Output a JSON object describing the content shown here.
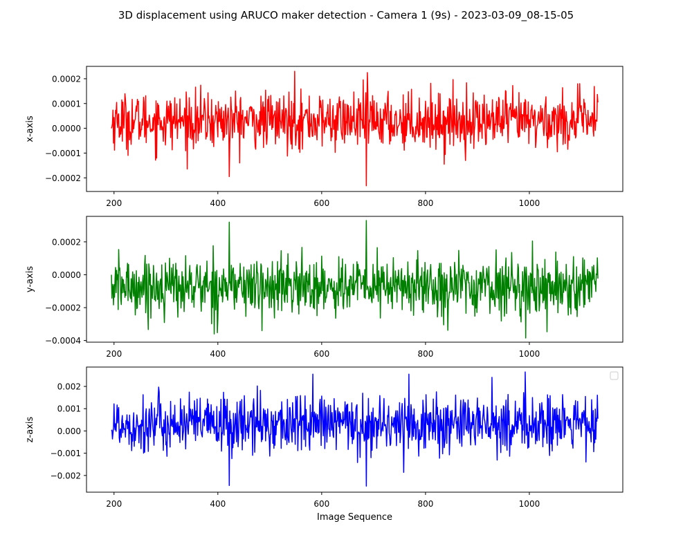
{
  "figure": {
    "title": "3D displacement using ARUCO maker detection - Camera 1 (9s) - 2023-03-09_08-15-05",
    "background": "#ffffff"
  },
  "chart_data": [
    {
      "type": "line",
      "xlabel": "",
      "ylabel": "x-axis",
      "xlim": [
        147,
        1180
      ],
      "ylim": [
        -0.000255,
        0.00025
      ],
      "xticks": [
        200,
        400,
        600,
        800,
        1000
      ],
      "xtick_labels": [
        "200",
        "400",
        "600",
        "800",
        "1000"
      ],
      "yticks": [
        0.0002,
        0.0001,
        0.0,
        -0.0001,
        -0.0002
      ],
      "ytick_labels": [
        "0.0002",
        "0.0001",
        "0.0000",
        "−0.0001",
        "−0.0002"
      ],
      "grid": false,
      "legend": null,
      "series": [
        {
          "color": "#ff0000",
          "x_range": [
            195,
            1132
          ],
          "approx_mean": 3e-05,
          "approx_min": -0.000232,
          "approx_max": 0.00023,
          "highlights": [
            {
              "x": 422,
              "y": -0.000195
            },
            {
              "x": 548,
              "y": 0.00023
            },
            {
              "x": 686,
              "y": -0.000232
            },
            {
              "x": 688,
              "y": 0.000225
            },
            {
              "x": 836,
              "y": -0.000145
            }
          ]
        }
      ]
    },
    {
      "type": "line",
      "xlabel": "",
      "ylabel": "y-axis",
      "xlim": [
        147,
        1180
      ],
      "ylim": [
        -0.00041,
        0.000355
      ],
      "xticks": [
        200,
        400,
        600,
        800,
        1000
      ],
      "xtick_labels": [
        "200",
        "400",
        "600",
        "800",
        "1000"
      ],
      "yticks": [
        0.0002,
        0.0,
        -0.0002,
        -0.0004
      ],
      "ytick_labels": [
        "0.0002",
        "0.0000",
        "−0.0002",
        "−0.0004"
      ],
      "grid": false,
      "legend": null,
      "series": [
        {
          "color": "#008000",
          "x_range": [
            195,
            1132
          ],
          "approx_mean": -7e-05,
          "approx_min": -0.000385,
          "approx_max": 0.00033,
          "highlights": [
            {
              "x": 422,
              "y": 0.00032
            },
            {
              "x": 485,
              "y": -0.00034
            },
            {
              "x": 686,
              "y": 0.00033
            },
            {
              "x": 993,
              "y": -0.000385
            }
          ]
        }
      ]
    },
    {
      "type": "line",
      "xlabel": "Image Sequence",
      "ylabel": "z-axis",
      "xlim": [
        147,
        1180
      ],
      "ylim": [
        -0.00275,
        0.00287
      ],
      "xticks": [
        200,
        400,
        600,
        800,
        1000
      ],
      "xtick_labels": [
        "200",
        "400",
        "600",
        "800",
        "1000"
      ],
      "yticks": [
        0.002,
        0.001,
        0.0,
        -0.001,
        -0.002
      ],
      "ytick_labels": [
        "0.002",
        "0.001",
        "0.000",
        "−0.001",
        "−0.002"
      ],
      "grid": false,
      "legend": {
        "position": "upper right",
        "entries": []
      },
      "series": [
        {
          "color": "#0000ff",
          "x_range": [
            195,
            1132
          ],
          "approx_mean": 0.0003,
          "approx_min": -0.00248,
          "approx_max": 0.00265,
          "highlights": [
            {
              "x": 422,
              "y": -0.00245
            },
            {
              "x": 583,
              "y": 0.00255
            },
            {
              "x": 686,
              "y": -0.00248
            },
            {
              "x": 768,
              "y": 0.00255
            },
            {
              "x": 992,
              "y": 0.00265
            }
          ]
        }
      ]
    }
  ]
}
